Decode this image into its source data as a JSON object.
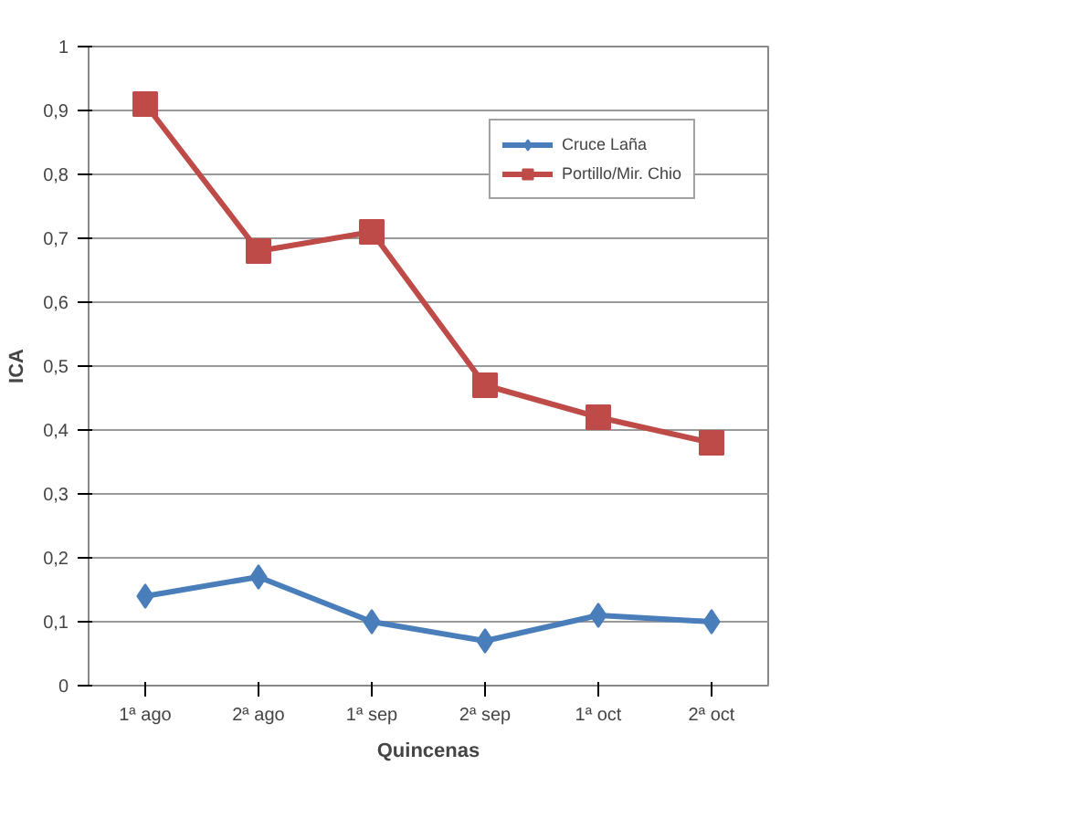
{
  "chart_data": {
    "type": "line",
    "xlabel": "Quincenas",
    "ylabel": "ICA",
    "categories": [
      "1ª ago",
      "2ª ago",
      "1ª sep",
      "2ª sep",
      "1ª oct",
      "2ª oct"
    ],
    "series": [
      {
        "name": "Cruce Laña",
        "color": "#4a7ebb",
        "marker": "diamond",
        "values": [
          0.14,
          0.17,
          0.1,
          0.07,
          0.11,
          0.1
        ]
      },
      {
        "name": "Portillo/Mir. Chio",
        "color": "#be4b48",
        "marker": "square",
        "values": [
          0.91,
          0.68,
          0.71,
          0.47,
          0.42,
          0.38
        ]
      }
    ],
    "ylim": [
      0,
      1
    ],
    "yticks": [
      0,
      {
        "value": 0.1,
        "label": "0,1"
      },
      {
        "value": 0.2,
        "label": "0,2"
      },
      {
        "value": 0.3,
        "label": "0,3"
      },
      {
        "value": 0.4,
        "label": "0,4"
      },
      {
        "value": 0.5,
        "label": "0,5"
      },
      {
        "value": 0.6,
        "label": "0,6"
      },
      {
        "value": 0.7,
        "label": "0,7"
      },
      {
        "value": 0.8,
        "label": "0,8"
      },
      {
        "value": 0.9,
        "label": "0,9"
      },
      1
    ],
    "grid": "y",
    "legend": "top right",
    "line_style": "solid"
  }
}
